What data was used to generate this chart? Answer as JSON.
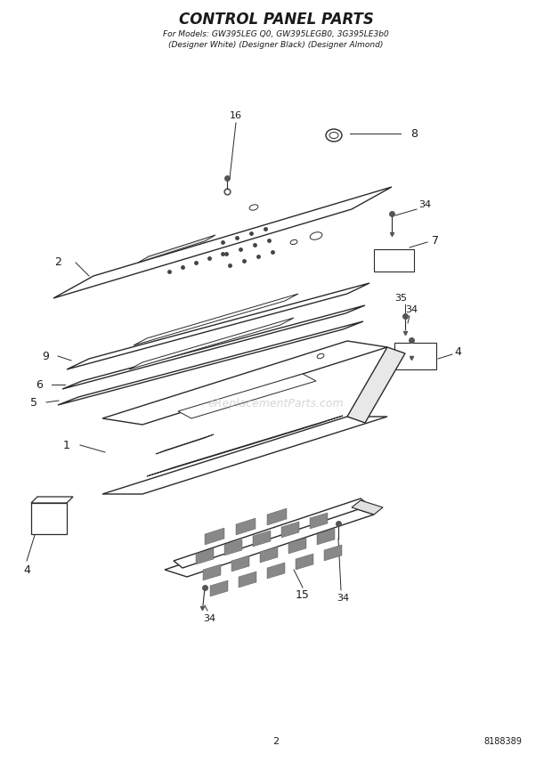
{
  "title": "CONTROL PANEL PARTS",
  "subtitle1": "For Models: GW395LEG Q0, GW395LEGB0, 3G395LE3b0",
  "subtitle2": "(Designer White) (Designer Black) (Designer Almond)",
  "page_number": "2",
  "part_number": "8188389",
  "background_color": "#ffffff",
  "line_color": "#2a2a2a",
  "text_color": "#1a1a1a",
  "watermark": "eReplacementParts.com",
  "fig_width": 6.2,
  "fig_height": 8.56,
  "dpi": 100
}
